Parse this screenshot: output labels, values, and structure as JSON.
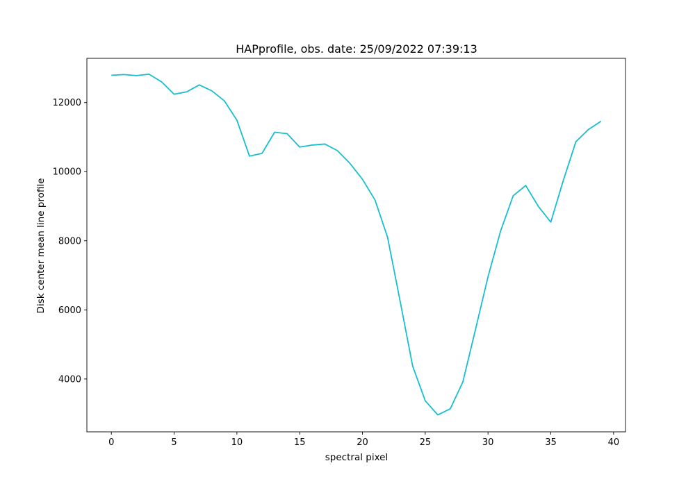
{
  "chart_data": {
    "type": "line",
    "title": "HAPprofile, obs. date: 25/09/2022 07:39:13",
    "xlabel": "spectral pixel",
    "ylabel": "Disk center mean line profile",
    "xlim": [
      -1.95,
      40.95
    ],
    "ylim": [
      2470,
      13280
    ],
    "xticks": [
      0,
      5,
      10,
      15,
      20,
      25,
      30,
      35,
      40
    ],
    "yticks": [
      4000,
      6000,
      8000,
      10000,
      12000
    ],
    "grid": false,
    "legend": "none",
    "series": [
      {
        "color": "#17becf",
        "x": [
          0,
          1,
          2,
          3,
          4,
          5,
          6,
          7,
          8,
          9,
          10,
          11,
          12,
          13,
          14,
          15,
          16,
          17,
          18,
          19,
          20,
          21,
          22,
          23,
          24,
          25,
          26,
          27,
          28,
          29,
          30,
          31,
          32,
          33,
          34,
          35,
          36,
          37,
          38,
          39
        ],
        "values": [
          12790,
          12810,
          12780,
          12820,
          12600,
          12240,
          12310,
          12510,
          12340,
          12050,
          11490,
          10450,
          10530,
          11140,
          11100,
          10710,
          10770,
          10800,
          10610,
          10240,
          9780,
          9180,
          8100,
          6250,
          4370,
          3370,
          2960,
          3140,
          3920,
          5430,
          6960,
          8280,
          9300,
          9600,
          9000,
          8540,
          9750,
          10870,
          11220,
          11460
        ]
      }
    ]
  }
}
